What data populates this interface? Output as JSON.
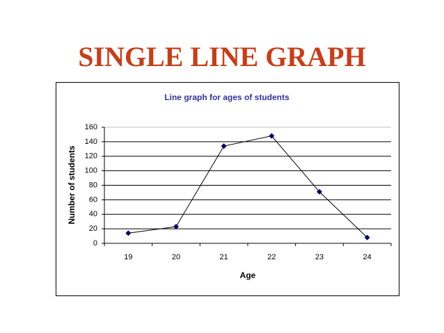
{
  "slide_title": "SINGLE LINE GRAPH",
  "chart_data": {
    "type": "line",
    "title": "Line graph for ages of students",
    "x_label": "Age",
    "y_label": "Number of students",
    "categories": [
      "19",
      "20",
      "21",
      "22",
      "23",
      "24"
    ],
    "values": [
      14,
      23,
      134,
      148,
      71,
      8
    ],
    "color": "#000066",
    "ylim": [
      0,
      160
    ],
    "yticks": [
      0,
      20,
      40,
      60,
      80,
      100,
      120,
      140,
      160
    ],
    "grid": true
  }
}
